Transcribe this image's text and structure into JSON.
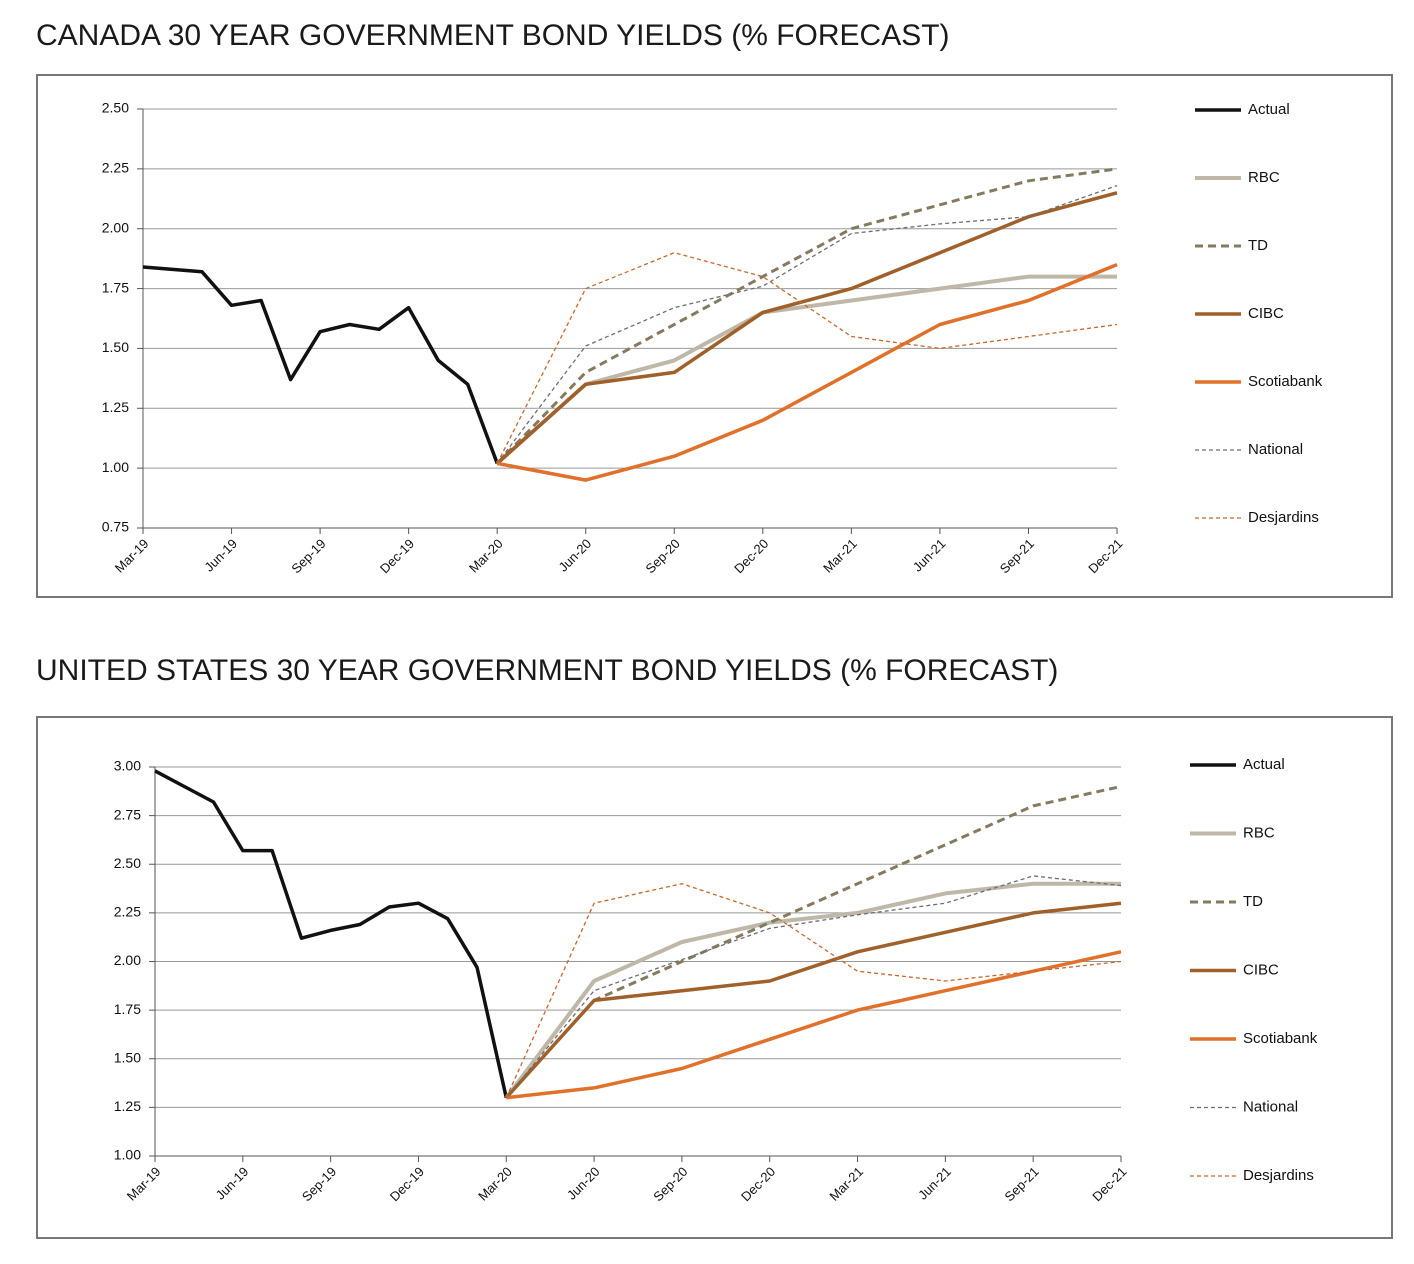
{
  "chart_data": [
    {
      "type": "line",
      "title": "CANADA 30 YEAR GOVERNMENT BOND YIELDS (% FORECAST)",
      "categories": [
        "Mar-19",
        "Jun-19",
        "Sep-19",
        "Dec-19",
        "Mar-20",
        "Jun-20",
        "Sep-20",
        "Dec-20",
        "Mar-21",
        "Jun-21",
        "Sep-21",
        "Dec-21"
      ],
      "ylim": [
        0.75,
        2.5
      ],
      "yticks": [
        {
          "value": 0.75,
          "label": "0.75"
        },
        {
          "value": 1,
          "label": "1.00"
        },
        {
          "value": 1.25,
          "label": "1.25"
        },
        {
          "value": 1.5,
          "label": "1.50"
        },
        {
          "value": 1.75,
          "label": "1.75"
        },
        {
          "value": 2,
          "label": "2.00"
        },
        {
          "value": 2.25,
          "label": "2.25"
        },
        {
          "value": 2.5,
          "label": "2.50"
        }
      ],
      "grid": true,
      "legend": "right",
      "series": [
        {
          "name": "Actual",
          "color": "#111111",
          "line_style": "solid",
          "x": [
            "Mar-19",
            "Apr-19",
            "May-19",
            "Jun-19",
            "Jul-19",
            "Aug-19",
            "Sep-19",
            "Oct-19",
            "Nov-19",
            "Dec-19",
            "Jan-20",
            "Feb-20",
            "Mar-20"
          ],
          "values": [
            1.84,
            1.83,
            1.82,
            1.68,
            1.7,
            1.37,
            1.57,
            1.6,
            1.58,
            1.67,
            1.45,
            1.35,
            1.02
          ]
        },
        {
          "name": "RBC",
          "color": "#bfb8a8",
          "line_style": "solid",
          "x": [
            "Mar-20",
            "Jun-20",
            "Sep-20",
            "Dec-20",
            "Mar-21",
            "Jun-21",
            "Sep-21",
            "Dec-21"
          ],
          "values": [
            1.02,
            1.35,
            1.45,
            1.65,
            1.7,
            1.75,
            1.8,
            1.8
          ]
        },
        {
          "name": "TD",
          "color": "#857a5e",
          "line_style": "dashed",
          "x": [
            "Mar-20",
            "Jun-20",
            "Sep-20",
            "Dec-20",
            "Mar-21",
            "Jun-21",
            "Sep-21",
            "Dec-21"
          ],
          "values": [
            1.02,
            1.4,
            1.6,
            1.8,
            2.0,
            2.1,
            2.2,
            2.25
          ]
        },
        {
          "name": "CIBC",
          "color": "#a0602a",
          "line_style": "solid",
          "x": [
            "Mar-20",
            "Jun-20",
            "Sep-20",
            "Dec-20",
            "Mar-21",
            "Jun-21",
            "Sep-21",
            "Dec-21"
          ],
          "values": [
            1.02,
            1.35,
            1.4,
            1.65,
            1.75,
            1.9,
            2.05,
            2.15
          ]
        },
        {
          "name": "Scotiabank",
          "color": "#e0702a",
          "line_style": "solid",
          "x": [
            "Mar-20",
            "Jun-20",
            "Sep-20",
            "Dec-20",
            "Mar-21",
            "Jun-21",
            "Sep-21",
            "Dec-21"
          ],
          "values": [
            1.02,
            0.95,
            1.05,
            1.2,
            1.4,
            1.6,
            1.7,
            1.85
          ]
        },
        {
          "name": "National",
          "color": "#6d6d72",
          "line_style": "fine-dashed",
          "x": [
            "Mar-20",
            "Jun-20",
            "Sep-20",
            "Dec-20",
            "Mar-21",
            "Jun-21",
            "Sep-21",
            "Dec-21"
          ],
          "values": [
            1.02,
            1.51,
            1.67,
            1.76,
            1.98,
            2.02,
            2.05,
            2.18
          ]
        },
        {
          "name": "Desjardins",
          "color": "#c8672a",
          "line_style": "fine-dashed",
          "x": [
            "Mar-20",
            "Jun-20",
            "Sep-20",
            "Dec-20",
            "Mar-21",
            "Jun-21",
            "Sep-21",
            "Dec-21"
          ],
          "values": [
            1.02,
            1.75,
            1.9,
            1.8,
            1.55,
            1.5,
            1.55,
            1.6
          ]
        }
      ]
    },
    {
      "type": "line",
      "title": "UNITED STATES 30 YEAR GOVERNMENT BOND YIELDS (% FORECAST)",
      "categories": [
        "Mar-19",
        "Jun-19",
        "Sep-19",
        "Dec-19",
        "Mar-20",
        "Jun-20",
        "Sep-20",
        "Dec-20",
        "Mar-21",
        "Jun-21",
        "Sep-21",
        "Dec-21"
      ],
      "ylim": [
        1,
        3
      ],
      "yticks": [
        {
          "value": 1,
          "label": "1.00"
        },
        {
          "value": 1.25,
          "label": "1.25"
        },
        {
          "value": 1.5,
          "label": "1.50"
        },
        {
          "value": 1.75,
          "label": "1.75"
        },
        {
          "value": 2,
          "label": "2.00"
        },
        {
          "value": 2.25,
          "label": "2.25"
        },
        {
          "value": 2.5,
          "label": "2.50"
        },
        {
          "value": 2.75,
          "label": "2.75"
        },
        {
          "value": 3,
          "label": "3.00"
        }
      ],
      "grid": true,
      "legend": "right",
      "series": [
        {
          "name": "Actual",
          "color": "#111111",
          "line_style": "solid",
          "x": [
            "Mar-19",
            "Apr-19",
            "May-19",
            "Jun-19",
            "Jul-19",
            "Aug-19",
            "Sep-19",
            "Oct-19",
            "Nov-19",
            "Dec-19",
            "Jan-20",
            "Feb-20",
            "Mar-20"
          ],
          "values": [
            2.98,
            2.9,
            2.82,
            2.57,
            2.57,
            2.12,
            2.16,
            2.19,
            2.28,
            2.3,
            2.22,
            1.97,
            1.3
          ]
        },
        {
          "name": "RBC",
          "color": "#bfb8a8",
          "line_style": "solid",
          "x": [
            "Mar-20",
            "Jun-20",
            "Sep-20",
            "Dec-20",
            "Mar-21",
            "Jun-21",
            "Sep-21",
            "Dec-21"
          ],
          "values": [
            1.3,
            1.9,
            2.1,
            2.2,
            2.25,
            2.35,
            2.4,
            2.4
          ]
        },
        {
          "name": "TD",
          "color": "#857a5e",
          "line_style": "dashed",
          "x": [
            "Mar-20",
            "Jun-20",
            "Sep-20",
            "Dec-20",
            "Mar-21",
            "Jun-21",
            "Sep-21",
            "Dec-21"
          ],
          "values": [
            1.3,
            1.8,
            2.0,
            2.2,
            2.4,
            2.6,
            2.8,
            2.9
          ]
        },
        {
          "name": "CIBC",
          "color": "#a0602a",
          "line_style": "solid",
          "x": [
            "Mar-20",
            "Jun-20",
            "Sep-20",
            "Dec-20",
            "Mar-21",
            "Jun-21",
            "Sep-21",
            "Dec-21"
          ],
          "values": [
            1.3,
            1.8,
            1.85,
            1.9,
            2.05,
            2.15,
            2.25,
            2.3
          ]
        },
        {
          "name": "Scotiabank",
          "color": "#e0702a",
          "line_style": "solid",
          "x": [
            "Mar-20",
            "Jun-20",
            "Sep-20",
            "Dec-20",
            "Mar-21",
            "Jun-21",
            "Sep-21",
            "Dec-21"
          ],
          "values": [
            1.3,
            1.35,
            1.45,
            1.6,
            1.75,
            1.85,
            1.95,
            2.05
          ]
        },
        {
          "name": "National",
          "color": "#6d6d72",
          "line_style": "fine-dashed",
          "x": [
            "Mar-20",
            "Jun-20",
            "Sep-20",
            "Dec-20",
            "Mar-21",
            "Jun-21",
            "Sep-21",
            "Dec-21"
          ],
          "values": [
            1.3,
            1.85,
            2.01,
            2.17,
            2.24,
            2.3,
            2.44,
            2.39
          ]
        },
        {
          "name": "Desjardins",
          "color": "#c8672a",
          "line_style": "fine-dashed",
          "x": [
            "Mar-20",
            "Jun-20",
            "Sep-20",
            "Dec-20",
            "Mar-21",
            "Jun-21",
            "Sep-21",
            "Dec-21"
          ],
          "values": [
            1.3,
            2.3,
            2.4,
            2.25,
            1.95,
            1.9,
            1.95,
            2.0
          ]
        }
      ]
    }
  ]
}
